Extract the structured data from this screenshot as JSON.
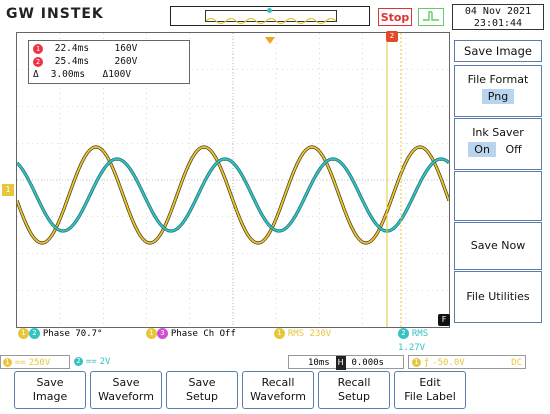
{
  "header": {
    "brand": "GW INSTEK",
    "run_state": "Stop",
    "trigger_icon": "trigger-edge-icon",
    "date": "04 Nov 2021",
    "time": "23:01:44"
  },
  "cursors": {
    "c1_marker": "1",
    "c1_time": "22.4ms",
    "c1_volt": "160V",
    "c2_marker": "2",
    "c2_time": "25.4ms",
    "c2_volt": "260V",
    "delta_symbol": "Δ",
    "delta_time": "3.00ms",
    "delta_volt": "100V"
  },
  "menu": {
    "title": "Save Image",
    "file_format_label": "File Format",
    "file_format_value": "Png",
    "ink_saver_label": "Ink Saver",
    "ink_on": "On",
    "ink_off": "Off",
    "save_now": "Save Now",
    "file_utilities": "File Utilities",
    "f_badge": "F"
  },
  "measurements": {
    "m1_badges": [
      "1",
      "2"
    ],
    "m1_text": "Phase 70.7°",
    "m2_badges": [
      "1",
      "3"
    ],
    "m2_text": "Phase Ch Off",
    "m3_badge": "1",
    "m3_text": "RMS 230V",
    "m4_badge": "2",
    "m4_text": "RMS 1.27V"
  },
  "status": {
    "ch1_badge": "1",
    "ch1_coupling": "==",
    "ch1_scale": "250V",
    "ch2_badge": "2",
    "ch2_coupling": "==",
    "ch2_scale": "2V",
    "timebase": "10ms",
    "h_label": "H",
    "h_pos": "0.000s",
    "trig_badge": "1",
    "trig_edge": "ƒ",
    "trig_level": "-50.0V",
    "trig_coupling": "DC"
  },
  "softkeys": [
    {
      "line1": "Save",
      "line2": "Image"
    },
    {
      "line1": "Save",
      "line2": "Waveform"
    },
    {
      "line1": "Save",
      "line2": "Setup"
    },
    {
      "line1": "Recall",
      "line2": "Waveform"
    },
    {
      "line1": "Recall",
      "line2": "Setup"
    },
    {
      "line1": "Edit",
      "line2": "File Label"
    }
  ],
  "colors": {
    "ch1": "#e7c63a",
    "ch2": "#35c2c2",
    "cursor_marker": "#e34a2a",
    "menu_border": "#5a7dab"
  }
}
